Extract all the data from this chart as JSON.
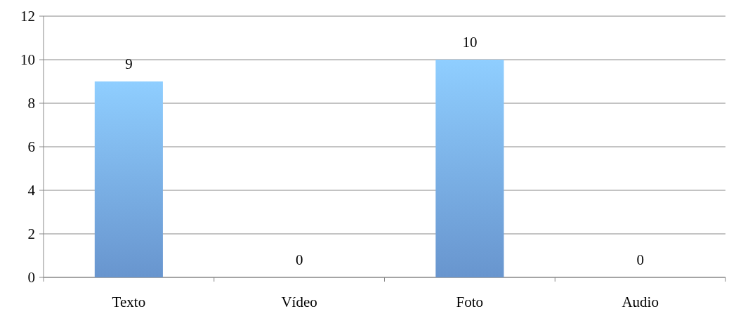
{
  "chart_data": {
    "type": "bar",
    "categories": [
      "Texto",
      "Vídeo",
      "Foto",
      "Audio"
    ],
    "values": [
      9,
      0,
      10,
      0
    ],
    "color": "#78acee",
    "ylim": [
      0,
      12
    ],
    "yticks": [
      0,
      2,
      4,
      6,
      8,
      10,
      12
    ],
    "grid": "y",
    "data_labels": true
  }
}
